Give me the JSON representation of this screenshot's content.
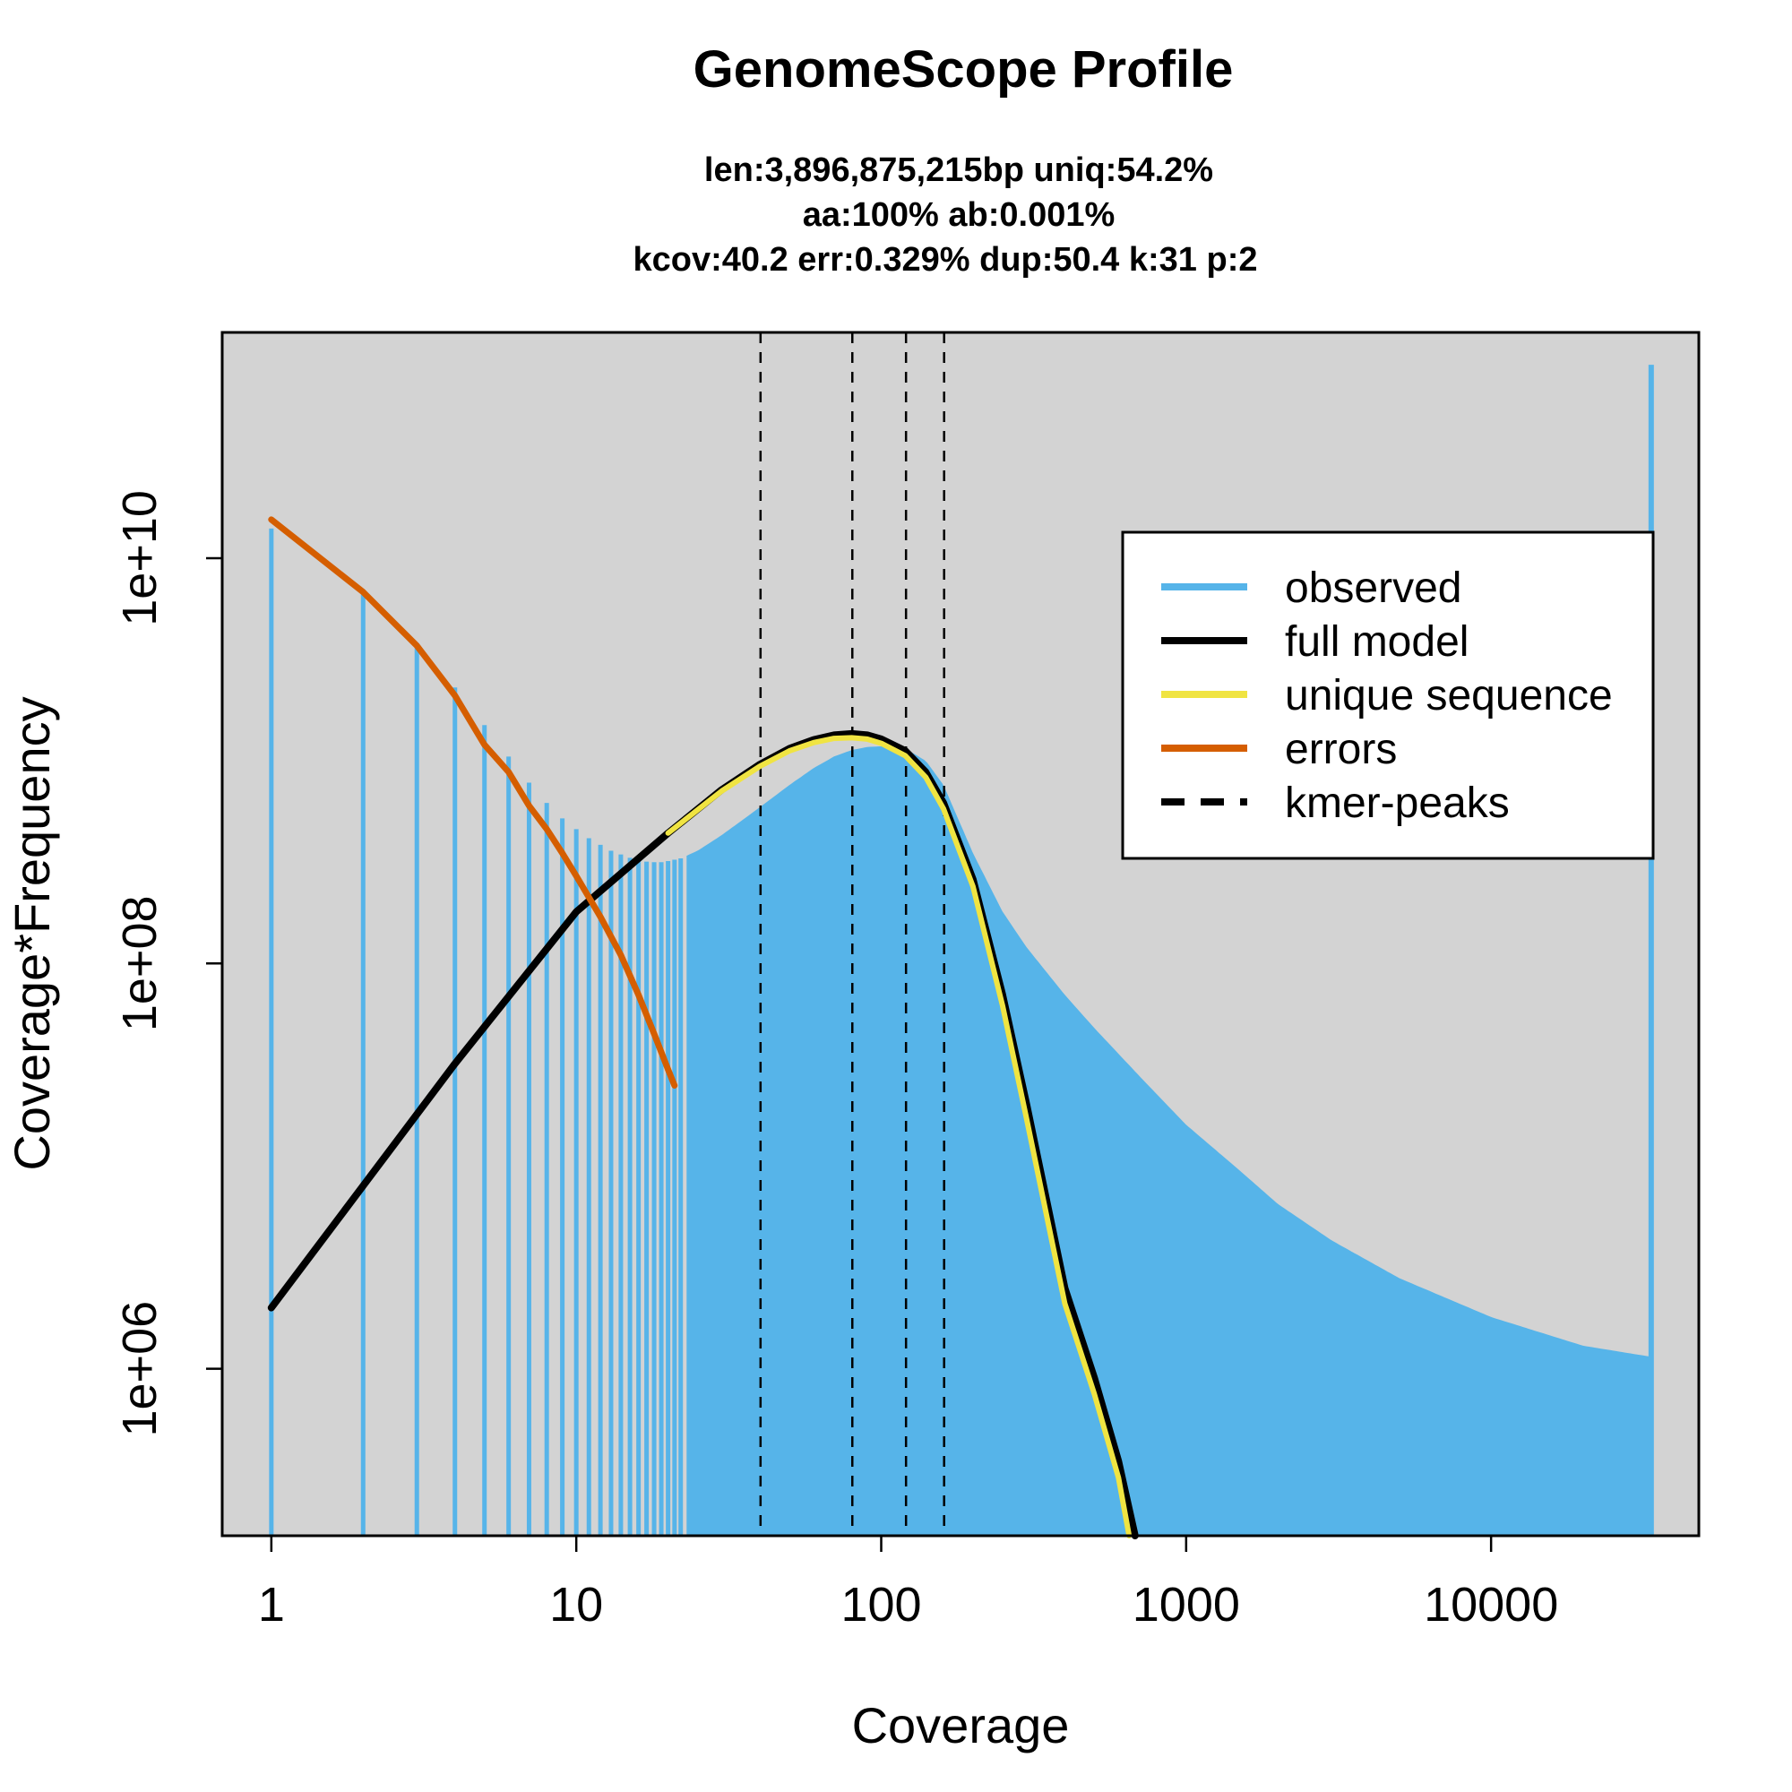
{
  "chart_data": {
    "type": "line",
    "title": "GenomeScope Profile",
    "subtitle": [
      "len:3,896,875,215bp uniq:54.2%",
      "aa:100% ab:0.001%",
      "kcov:40.2 err:0.329%  dup:50.4  k:31 p:2"
    ],
    "xlabel": "Coverage",
    "ylabel": "Coverage*Frequency",
    "x_scale": "log",
    "y_scale": "log",
    "xlim": [
      0.69,
      48000
    ],
    "ylim": [
      150000,
      130000000000
    ],
    "x_ticks": [
      {
        "value": 1,
        "label": "1"
      },
      {
        "value": 10,
        "label": "10"
      },
      {
        "value": 100,
        "label": "100"
      },
      {
        "value": 1000,
        "label": "1000"
      },
      {
        "value": 10000,
        "label": "10000"
      }
    ],
    "y_ticks": [
      {
        "value": 1000000,
        "label": "1e+06"
      },
      {
        "value": 100000000,
        "label": "1e+08"
      },
      {
        "value": 10000000000,
        "label": "1e+10"
      }
    ],
    "background_color": "#d3d3d3",
    "legend_position": "top-right",
    "legend": [
      {
        "label": "observed",
        "color": "#56b4e9",
        "style": "solid"
      },
      {
        "label": "full model",
        "color": "#000000",
        "style": "solid"
      },
      {
        "label": "unique sequence",
        "color": "#f0e442",
        "style": "solid"
      },
      {
        "label": "errors",
        "color": "#d55e00",
        "style": "solid"
      },
      {
        "label": "kmer-peaks",
        "color": "#000000",
        "style": "dashed"
      }
    ],
    "kmer_peaks": [
      40.2,
      80.4,
      120.6,
      160.8
    ],
    "series": [
      {
        "name": "observed",
        "style": "histogram",
        "color": "#56b4e9",
        "points": [
          [
            1,
            14000000000
          ],
          [
            2,
            6800000000
          ],
          [
            3,
            3800000000
          ],
          [
            4,
            2300000000
          ],
          [
            5,
            1500000000
          ],
          [
            6,
            1050000000
          ],
          [
            7,
            780000000
          ],
          [
            8,
            620000000
          ],
          [
            9,
            520000000
          ],
          [
            10,
            460000000
          ],
          [
            11,
            415000000
          ],
          [
            12,
            385000000
          ],
          [
            13,
            360000000
          ],
          [
            14,
            345000000
          ],
          [
            15,
            332000000
          ],
          [
            16,
            322000000
          ],
          [
            17,
            318000000
          ],
          [
            18,
            316000000
          ],
          [
            19,
            316000000
          ],
          [
            20,
            320000000
          ],
          [
            22,
            330000000
          ],
          [
            25,
            360000000
          ],
          [
            30,
            430000000
          ],
          [
            40,
            590000000
          ],
          [
            50,
            760000000
          ],
          [
            60,
            920000000
          ],
          [
            70,
            1050000000
          ],
          [
            80,
            1130000000
          ],
          [
            90,
            1170000000
          ],
          [
            100,
            1180000000
          ],
          [
            120,
            1150000000
          ],
          [
            140,
            1000000000
          ],
          [
            160,
            760000000
          ],
          [
            200,
            350000000
          ],
          [
            250,
            180000000
          ],
          [
            300,
            120000000
          ],
          [
            400,
            70000000
          ],
          [
            500,
            48000000
          ],
          [
            700,
            28000000
          ],
          [
            1000,
            16000000
          ],
          [
            1500,
            9500000
          ],
          [
            2000,
            6500000
          ],
          [
            3000,
            4300000
          ],
          [
            5000,
            2800000
          ],
          [
            10000,
            1800000
          ],
          [
            20000,
            1300000
          ],
          [
            33000,
            1150000
          ],
          [
            33500,
            90000000000
          ]
        ]
      },
      {
        "name": "full model",
        "style": "solid",
        "color": "#000000",
        "points": [
          [
            1,
            2000000
          ],
          [
            2,
            8000000
          ],
          [
            4,
            32000000
          ],
          [
            10,
            180000000
          ],
          [
            20,
            440000000
          ],
          [
            30,
            720000000
          ],
          [
            40,
            960000000
          ],
          [
            50,
            1150000000
          ],
          [
            60,
            1270000000
          ],
          [
            70,
            1340000000
          ],
          [
            80,
            1360000000
          ],
          [
            90,
            1340000000
          ],
          [
            100,
            1280000000
          ],
          [
            120,
            1120000000
          ],
          [
            140,
            880000000
          ],
          [
            160,
            620000000
          ],
          [
            200,
            260000000
          ],
          [
            250,
            70000000
          ],
          [
            300,
            20000000
          ],
          [
            400,
            2500000
          ],
          [
            500,
            900000
          ],
          [
            600,
            350000
          ],
          [
            680,
            150000
          ]
        ]
      },
      {
        "name": "unique sequence",
        "style": "solid",
        "color": "#f0e442",
        "points": [
          [
            20,
            440000000
          ],
          [
            30,
            710000000
          ],
          [
            40,
            940000000
          ],
          [
            50,
            1120000000
          ],
          [
            60,
            1230000000
          ],
          [
            70,
            1290000000
          ],
          [
            80,
            1300000000
          ],
          [
            90,
            1280000000
          ],
          [
            100,
            1220000000
          ],
          [
            120,
            1060000000
          ],
          [
            140,
            830000000
          ],
          [
            160,
            580000000
          ],
          [
            200,
            240000000
          ],
          [
            250,
            62000000
          ],
          [
            300,
            17000000
          ],
          [
            400,
            2100000
          ],
          [
            500,
            750000
          ],
          [
            600,
            290000
          ],
          [
            650,
            150000
          ]
        ]
      },
      {
        "name": "errors",
        "style": "solid",
        "color": "#d55e00",
        "points": [
          [
            1,
            15500000000
          ],
          [
            2,
            6800000000
          ],
          [
            3,
            3700000000
          ],
          [
            4,
            2100000000
          ],
          [
            5,
            1200000000
          ],
          [
            6,
            880000000
          ],
          [
            7,
            600000000
          ],
          [
            8,
            460000000
          ],
          [
            9,
            350000000
          ],
          [
            10,
            270000000
          ],
          [
            12,
            170000000
          ],
          [
            14,
            110000000
          ],
          [
            16,
            70000000
          ],
          [
            18,
            45000000
          ],
          [
            20,
            30000000
          ],
          [
            21,
            25000000
          ]
        ]
      }
    ]
  }
}
